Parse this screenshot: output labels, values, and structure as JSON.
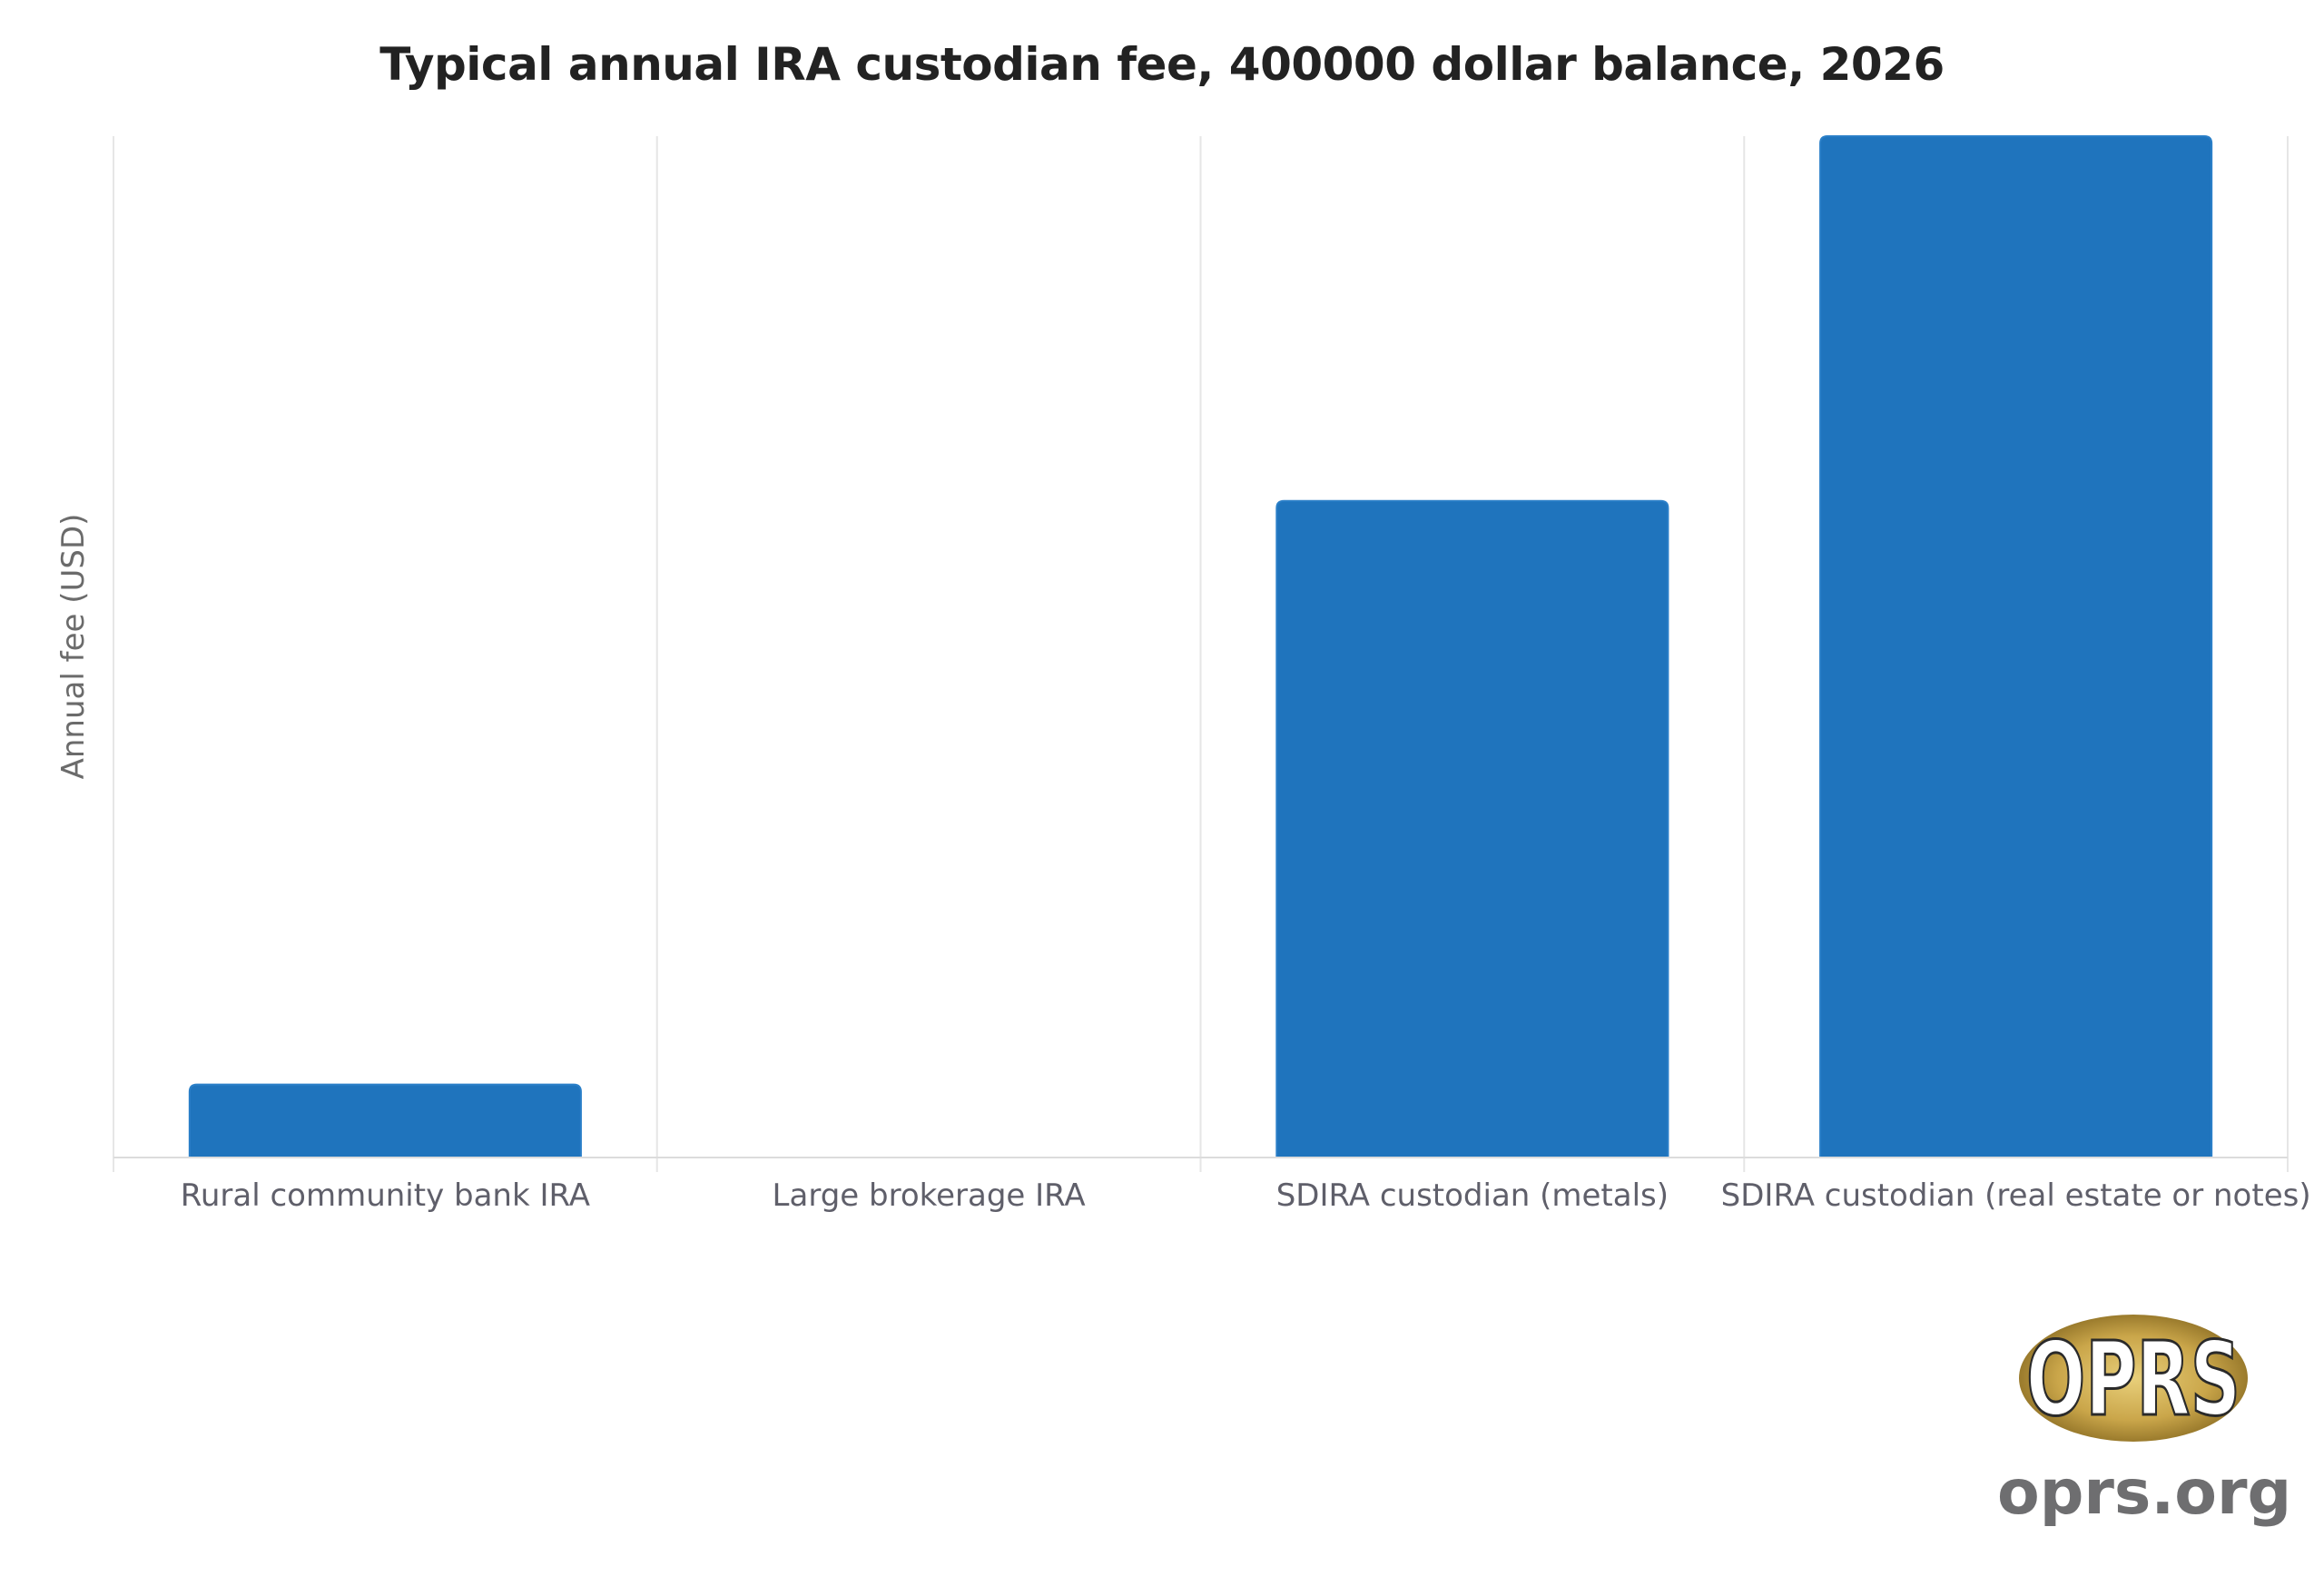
{
  "chart_data": {
    "type": "bar",
    "title": "Typical annual IRA custodian fee, 400000 dollar balance, 2026",
    "xlabel": "",
    "ylabel": "Annual fee (USD)",
    "categories": [
      "Rural community bank IRA",
      "Large brokerage IRA",
      "SDIRA custodian (metals)",
      "SDIRA custodian (real estate or notes)"
    ],
    "values": [
      50,
      0,
      450,
      700
    ],
    "ylim": [
      0,
      700
    ],
    "grid": "vertical",
    "bar_color": "#1f74bd",
    "y_tick_labels_shown": false
  },
  "logo": {
    "mark": "OPRS",
    "url": "oprs.org"
  }
}
